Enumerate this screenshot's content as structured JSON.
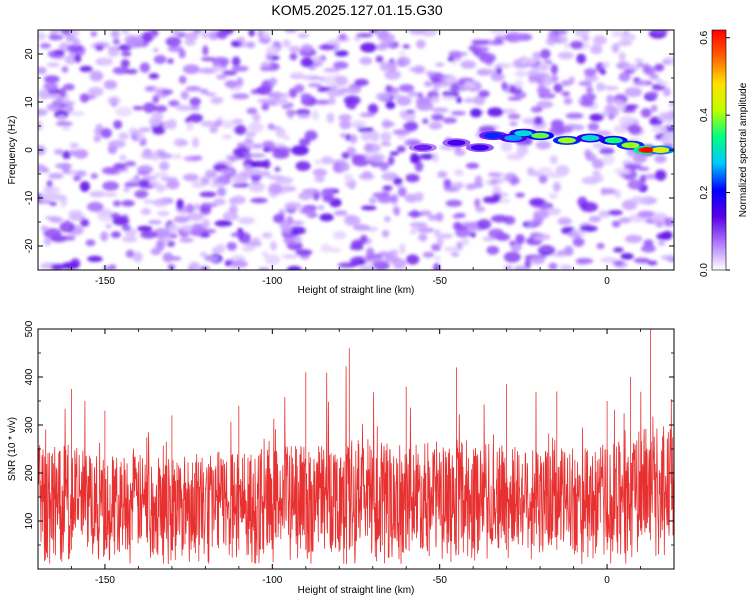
{
  "title": "KOM5.2025.127.01.15.G30",
  "chart_data": [
    {
      "type": "heatmap",
      "xlabel": "Height of straight line (km)",
      "ylabel": "Frequency (Hz)",
      "xlim": [
        -170,
        20
      ],
      "ylim": [
        -25,
        25
      ],
      "xticks": [
        "-150",
        "-100",
        "-50",
        "0"
      ],
      "xtick_values": [
        -150,
        -100,
        -50,
        0
      ],
      "yticks": [
        "20",
        "10",
        "0",
        "-10",
        "-20"
      ],
      "ytick_values": [
        20,
        10,
        0,
        -10,
        -20
      ],
      "colorbar": {
        "label": "Normalized spectral amplitude",
        "range": [
          0.0,
          0.62
        ],
        "ticks": [
          "0.0",
          "0.2",
          "0.4",
          "0.6"
        ],
        "tick_values": [
          0.0,
          0.2,
          0.4,
          0.6
        ],
        "colors": [
          "#ffffff",
          "#b07aff",
          "#5a00e6",
          "#0000ff",
          "#00c8ff",
          "#00ff80",
          "#c0ff00",
          "#ffe000",
          "#ff6000",
          "#ff0000"
        ]
      },
      "description_ridge": [
        {
          "x": -55,
          "y": 0.5,
          "amp": 0.12
        },
        {
          "x": -45,
          "y": 1.5,
          "amp": 0.15
        },
        {
          "x": -38,
          "y": 0.5,
          "amp": 0.16
        },
        {
          "x": -34,
          "y": 3.0,
          "amp": 0.22
        },
        {
          "x": -28,
          "y": 2.5,
          "amp": 0.26
        },
        {
          "x": -25,
          "y": 3.5,
          "amp": 0.3
        },
        {
          "x": -20,
          "y": 3.0,
          "amp": 0.38
        },
        {
          "x": -12,
          "y": 2.0,
          "amp": 0.4
        },
        {
          "x": -5,
          "y": 2.5,
          "amp": 0.3
        },
        {
          "x": 2,
          "y": 2.0,
          "amp": 0.35
        },
        {
          "x": 7,
          "y": 1.0,
          "amp": 0.4
        },
        {
          "x": 12,
          "y": 0.0,
          "amp": 0.6
        },
        {
          "x": 16,
          "y": 0.0,
          "amp": 0.45
        }
      ]
    },
    {
      "type": "line",
      "xlabel": "Height of straight line (km)",
      "ylabel": "SNR (10 * v/v)",
      "xlim": [
        -170,
        20
      ],
      "ylim": [
        0,
        500
      ],
      "xticks": [
        "-150",
        "-100",
        "-50",
        "0"
      ],
      "xtick_values": [
        -150,
        -100,
        -50,
        0
      ],
      "yticks": [
        "500",
        "400",
        "300",
        "200",
        "100"
      ],
      "ytick_values": [
        500,
        400,
        300,
        200,
        100
      ],
      "color": "#e83030",
      "series_envelope": [
        {
          "x": -170,
          "typical": [
            40,
            260
          ],
          "peak": 300
        },
        {
          "x": -160,
          "typical": [
            40,
            260
          ],
          "peak": 375
        },
        {
          "x": -150,
          "typical": [
            40,
            240
          ],
          "peak": 330
        },
        {
          "x": -130,
          "typical": [
            40,
            240
          ],
          "peak": 320
        },
        {
          "x": -110,
          "typical": [
            40,
            250
          ],
          "peak": 340
        },
        {
          "x": -90,
          "typical": [
            40,
            260
          ],
          "peak": 410
        },
        {
          "x": -77,
          "typical": [
            40,
            270
          ],
          "peak": 460
        },
        {
          "x": -60,
          "typical": [
            40,
            260
          ],
          "peak": 380
        },
        {
          "x": -45,
          "typical": [
            40,
            270
          ],
          "peak": 420
        },
        {
          "x": -30,
          "typical": [
            40,
            260
          ],
          "peak": 385
        },
        {
          "x": -15,
          "typical": [
            40,
            250
          ],
          "peak": 370
        },
        {
          "x": 0,
          "typical": [
            40,
            260
          ],
          "peak": 350
        },
        {
          "x": 7,
          "typical": [
            50,
            280
          ],
          "peak": 400
        },
        {
          "x": 13,
          "typical": [
            60,
            300
          ],
          "peak": 500
        },
        {
          "x": 20,
          "typical": [
            60,
            300
          ],
          "peak": 420
        }
      ]
    }
  ]
}
